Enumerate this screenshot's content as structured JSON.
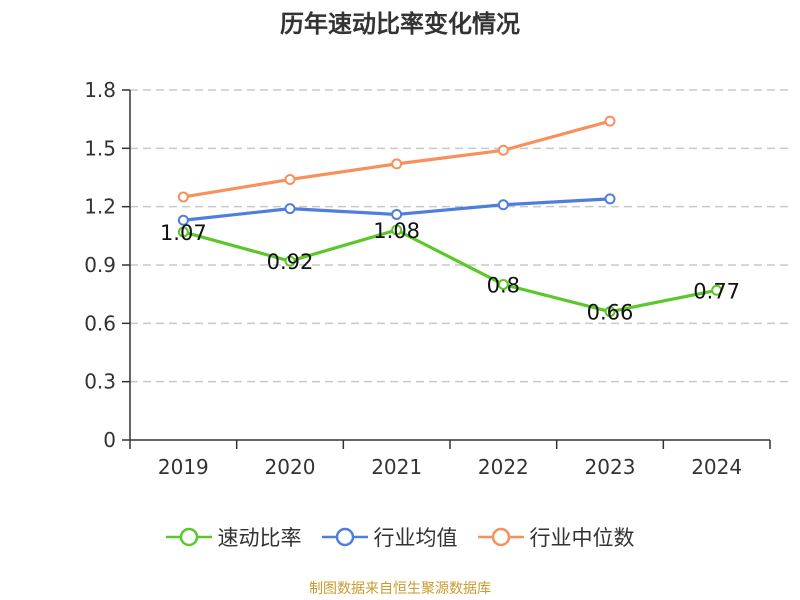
{
  "chart_data": {
    "type": "line",
    "title": "历年速动比率变化情况",
    "categories": [
      "2019",
      "2020",
      "2021",
      "2022",
      "2023",
      "2024"
    ],
    "ylim": [
      0,
      1.8
    ],
    "yticks": [
      "0",
      "0.3",
      "0.6",
      "0.9",
      "1.2",
      "1.5",
      "1.8"
    ],
    "grid": true,
    "legend_position": "bottom",
    "series": [
      {
        "name": "速动比率",
        "color": "#5cc72b",
        "values": [
          1.07,
          0.92,
          1.08,
          0.8,
          0.66,
          0.77
        ],
        "labels": [
          "1.07",
          "0.92",
          "1.08",
          "0.8",
          "0.66",
          "0.77"
        ]
      },
      {
        "name": "行业均值",
        "color": "#4f7fdc",
        "values": [
          1.13,
          1.19,
          1.16,
          1.21,
          1.24,
          null
        ]
      },
      {
        "name": "行业中位数",
        "color": "#f7905a",
        "values": [
          1.25,
          1.34,
          1.42,
          1.49,
          1.64,
          null
        ]
      }
    ]
  },
  "source": "制图数据来自恒生聚源数据库"
}
